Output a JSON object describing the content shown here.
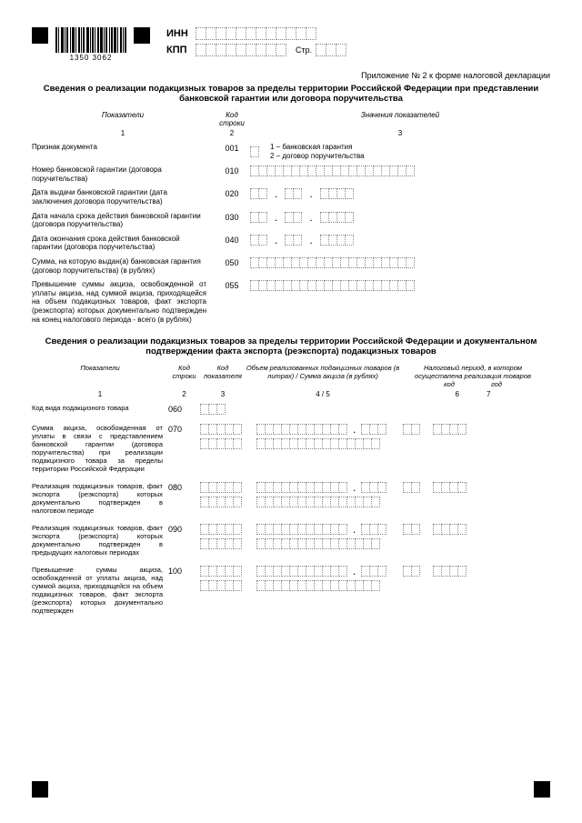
{
  "header": {
    "barcode_label": "1350  3062",
    "inn_label": "ИНН",
    "kpp_label": "КПП",
    "str_label": "Стр.",
    "inn_cells": 12,
    "kpp_cells": 9,
    "str_cells": 3
  },
  "appendix": "Приложение № 2 к форме налоговой декларации",
  "title1": "Сведения о реализации подакцизных товаров за пределы территории Российской Федерации при представлении банковской гарантии или договора поручительства",
  "section1_headers": {
    "h1": "Показатели",
    "h2": "Код строки",
    "h3": "Значения показателей",
    "n1": "1",
    "n2": "2",
    "n3": "3"
  },
  "rows1": [
    {
      "label": "Признак документа",
      "code": "001",
      "type": "single",
      "cells": 1,
      "legend": "1 – банковская гарантия\n2 – договор поручительства"
    },
    {
      "label": "Номер банковской гарантии\n(договора поручительства)",
      "code": "010",
      "type": "long",
      "cells": 20
    },
    {
      "label": "Дата выдачи банковской гарантии\n(дата заключения договора поручительства)",
      "code": "020",
      "type": "date"
    },
    {
      "label": "Дата начала срока действия банковской гарантии\n(договора поручительства)",
      "code": "030",
      "type": "date"
    },
    {
      "label": "Дата окончания срока действия банковской гарантии\n(договора поручительства)",
      "code": "040",
      "type": "date"
    },
    {
      "label": "Сумма, на которую выдан(а) банковская гарантия\n(договор поручительства) (в рублях)",
      "code": "050",
      "type": "long",
      "cells": 20
    },
    {
      "label": "Превышение суммы акциза, освобожденной от уплаты акциза, над суммой акциза, приходящейся на объем подакцизных товаров, факт экспорта (реэкспорта) которых документально подтвержден на конец налогового периода - всего (в рублях)",
      "code": "055",
      "type": "long",
      "cells": 20
    }
  ],
  "title2": "Сведения о реализации подакцизных товаров за пределы территории Российской Федерации и документальном подтверждении факта экспорта (реэкспорта) подакцизных товаров",
  "section2_headers": {
    "h1": "Показатели",
    "h2": "Код строки",
    "h3": "Код показателя",
    "h4": "Объем реализованных подакцизных товаров (в литрах) / Сумма акциза (в рублях)",
    "h5": "Налоговый период, в котором осуществлена реализация товаров",
    "h5a": "код",
    "h5b": "год",
    "n1": "1",
    "n2": "2",
    "n3": "3",
    "n4": "4 / 5",
    "n6": "6",
    "n7": "7"
  },
  "row_060": {
    "label": "Код вида подакцизного товара",
    "code": "060"
  },
  "rows2": [
    {
      "label": "Сумма акциза, освобожденная от уплаты в связи с представлением банковской гарантии (договора поручительства) при реализации подакцизного товара за пределы территории Российской Федерации",
      "code": "070"
    },
    {
      "label": "Реализация подакцизных товаров, факт экспорта (реэкспорта) которых документально подтвержден в налоговом периоде",
      "code": "080"
    },
    {
      "label": "Реализация подакцизных товаров, факт экспорта (реэкспорта) которых документально подтвержден в предыдущих налоговых периодах",
      "code": "090"
    },
    {
      "label": "Превышение суммы акциза, освобожденной от уплаты акциза, над суммой акциза, приходящейся на объем подакцизных товаров, факт экспорта (реэкспорта) которых документально подтвержден",
      "code": "100"
    }
  ]
}
